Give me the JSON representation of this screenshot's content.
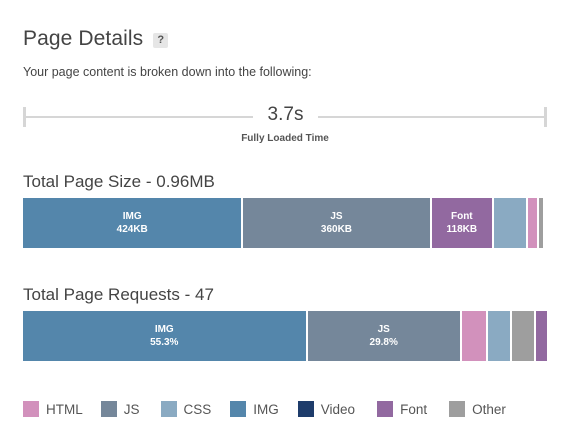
{
  "header": {
    "title": "Page Details",
    "help_icon": "?",
    "subtitle": "Your page content is broken down into the following:"
  },
  "timeline": {
    "value": "3.7s",
    "label": "Fully Loaded Time"
  },
  "colors": {
    "HTML": "#d291bc",
    "JS": "#75879a",
    "CSS": "#8aaac2",
    "IMG": "#5486ab",
    "Video": "#1e3c6b",
    "Font": "#9269a0",
    "Other": "#9e9e9e"
  },
  "page_size": {
    "title": "Total Page Size - 0.96MB",
    "segments": [
      {
        "type": "IMG",
        "name": "IMG",
        "value": "424KB",
        "fraction": 0.425
      },
      {
        "type": "JS",
        "name": "JS",
        "value": "360KB",
        "fraction": 0.362
      },
      {
        "type": "Font",
        "name": "Font",
        "value": "118KB",
        "fraction": 0.118
      },
      {
        "type": "CSS",
        "name": "",
        "value": "",
        "fraction": 0.062
      },
      {
        "type": "HTML",
        "name": "",
        "value": "",
        "fraction": 0.017
      },
      {
        "type": "Other",
        "name": "",
        "value": "",
        "fraction": 0.008
      }
    ]
  },
  "page_requests": {
    "title": "Total Page Requests - 47",
    "segments": [
      {
        "type": "IMG",
        "name": "IMG",
        "value": "55.3%",
        "fraction": 0.553
      },
      {
        "type": "JS",
        "name": "JS",
        "value": "29.8%",
        "fraction": 0.298
      },
      {
        "type": "HTML",
        "name": "",
        "value": "",
        "fraction": 0.047
      },
      {
        "type": "CSS",
        "name": "",
        "value": "",
        "fraction": 0.043
      },
      {
        "type": "Other",
        "name": "",
        "value": "",
        "fraction": 0.044
      },
      {
        "type": "Font",
        "name": "",
        "value": "",
        "fraction": 0.021
      }
    ]
  },
  "legend": [
    {
      "label": "HTML",
      "type": "HTML"
    },
    {
      "label": "JS",
      "type": "JS"
    },
    {
      "label": "CSS",
      "type": "CSS"
    },
    {
      "label": "IMG",
      "type": "IMG"
    },
    {
      "label": "Video",
      "type": "Video"
    },
    {
      "label": "Font",
      "type": "Font"
    },
    {
      "label": "Other",
      "type": "Other"
    }
  ]
}
